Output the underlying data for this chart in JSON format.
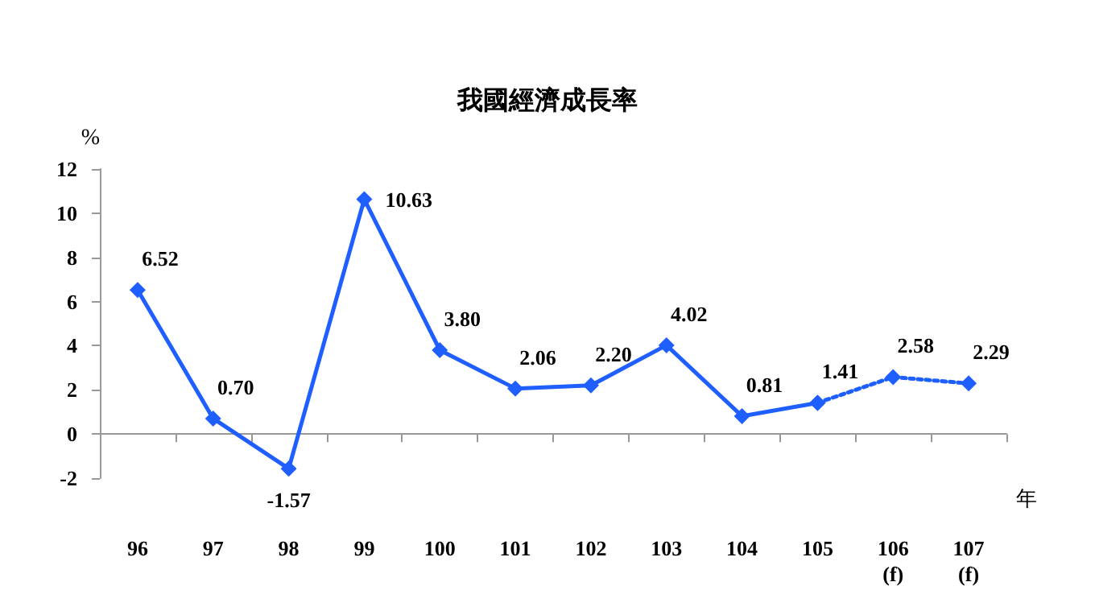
{
  "chart_data": {
    "type": "line",
    "title": "我國經濟成長率",
    "ylabel": "%",
    "xlabel": "年",
    "categories": [
      "96",
      "97",
      "98",
      "99",
      "100",
      "101",
      "102",
      "103",
      "104",
      "105",
      "106\n(f)",
      "107\n(f)"
    ],
    "series": [
      {
        "color": "#1f5fff",
        "values": [
          6.52,
          0.7,
          -1.57,
          10.63,
          3.8,
          2.06,
          2.2,
          4.02,
          0.81,
          1.41,
          null,
          null
        ],
        "value_labels": [
          "6.52",
          "0.70",
          "-1.57",
          "10.63",
          "3.80",
          "2.06",
          "2.20",
          "4.02",
          "0.81",
          "1.41",
          null,
          null
        ],
        "line_style": "solid"
      },
      {
        "color": "#1f5fff",
        "values": [
          null,
          null,
          null,
          null,
          null,
          null,
          null,
          null,
          null,
          1.41,
          2.58,
          2.29
        ],
        "value_labels": [
          null,
          null,
          null,
          null,
          null,
          null,
          null,
          null,
          null,
          null,
          "2.58",
          "2.29"
        ],
        "line_style": "dotted"
      }
    ],
    "ylim": [
      -2,
      12
    ],
    "yticks": [
      -2,
      0,
      2,
      4,
      6,
      8,
      10,
      12
    ],
    "marker": "diamond"
  }
}
